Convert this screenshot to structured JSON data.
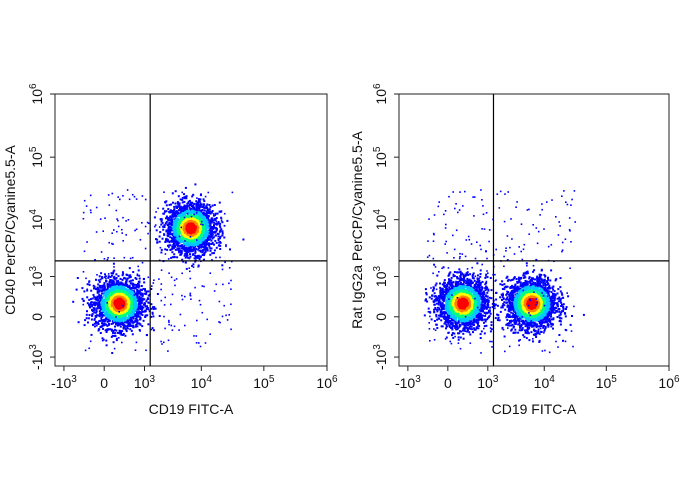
{
  "chart_data": [
    {
      "type": "scatter",
      "style": "flow-cytometry-density-pseudocolor",
      "xlabel": "CD19 FITC-A",
      "ylabel": "CD40 PerCP/Cyanine5.5-A",
      "x_scale": "biexponential",
      "y_scale": "biexponential",
      "x_ticks": [
        {
          "value": -1000,
          "base": "-10",
          "exp": "3"
        },
        {
          "value": 0,
          "base": "0",
          "exp": ""
        },
        {
          "value": 1000,
          "base": "10",
          "exp": "3"
        },
        {
          "value": 10000,
          "base": "10",
          "exp": "4"
        },
        {
          "value": 100000,
          "base": "10",
          "exp": "5"
        },
        {
          "value": 1000000,
          "base": "10",
          "exp": "6"
        }
      ],
      "y_ticks": [
        {
          "value": -1000,
          "base": "-10",
          "exp": "3"
        },
        {
          "value": 0,
          "base": "0",
          "exp": ""
        },
        {
          "value": 1000,
          "base": "10",
          "exp": "3"
        },
        {
          "value": 10000,
          "base": "10",
          "exp": "4"
        },
        {
          "value": 100000,
          "base": "10",
          "exp": "5"
        },
        {
          "value": 1000000,
          "base": "10",
          "exp": "6"
        }
      ],
      "quadrant_gate": {
        "x": 1300,
        "y": 2000
      },
      "populations": [
        {
          "label": "CD19- CD40-",
          "x_center": 200,
          "y_center": 200,
          "relative_density": "high"
        },
        {
          "label": "CD19+ CD40+",
          "x_center": 6500,
          "y_center": 7500,
          "relative_density": "high"
        }
      ],
      "grid": false
    },
    {
      "type": "scatter",
      "style": "flow-cytometry-density-pseudocolor",
      "xlabel": "CD19 FITC-A",
      "ylabel": "Rat IgG2a PerCP/Cyanine5.5-A",
      "x_scale": "biexponential",
      "y_scale": "biexponential",
      "x_ticks": [
        {
          "value": -1000,
          "base": "-10",
          "exp": "3"
        },
        {
          "value": 0,
          "base": "0",
          "exp": ""
        },
        {
          "value": 1000,
          "base": "10",
          "exp": "3"
        },
        {
          "value": 10000,
          "base": "10",
          "exp": "4"
        },
        {
          "value": 100000,
          "base": "10",
          "exp": "5"
        },
        {
          "value": 1000000,
          "base": "10",
          "exp": "6"
        }
      ],
      "y_ticks": [
        {
          "value": -1000,
          "base": "-10",
          "exp": "3"
        },
        {
          "value": 0,
          "base": "0",
          "exp": ""
        },
        {
          "value": 1000,
          "base": "10",
          "exp": "3"
        },
        {
          "value": 10000,
          "base": "10",
          "exp": "4"
        },
        {
          "value": 100000,
          "base": "10",
          "exp": "5"
        },
        {
          "value": 1000000,
          "base": "10",
          "exp": "6"
        }
      ],
      "quadrant_gate": {
        "x": 1300,
        "y": 2000
      },
      "populations": [
        {
          "label": "CD19- IgG2a-",
          "x_center": 200,
          "y_center": 200,
          "relative_density": "high"
        },
        {
          "label": "CD19+ IgG2a-",
          "x_center": 6000,
          "y_center": 200,
          "relative_density": "high"
        }
      ],
      "grid": false
    }
  ],
  "colormap": [
    "#0000ff",
    "#00c8ff",
    "#00ff80",
    "#ffff00",
    "#ff8000",
    "#ff0000"
  ]
}
